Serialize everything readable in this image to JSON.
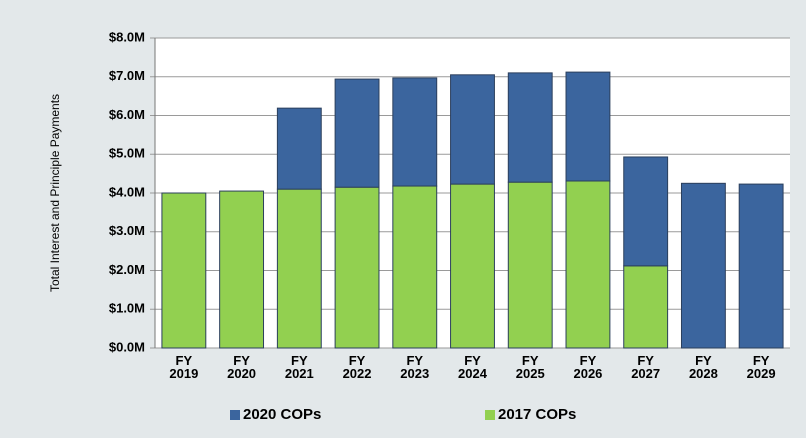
{
  "chart_data": {
    "type": "stacked_bar",
    "y_axis_label": "Total Interest and Principle Payments",
    "categories": [
      "FY 2019",
      "FY 2020",
      "FY 2021",
      "FY 2022",
      "FY 2023",
      "FY 2024",
      "FY 2025",
      "FY 2026",
      "FY 2027",
      "FY 2028",
      "FY 2029"
    ],
    "series": [
      {
        "name": "2017 COPs",
        "color": "#92d050",
        "values": [
          4.0,
          4.05,
          4.1,
          4.15,
          4.18,
          4.23,
          4.28,
          4.31,
          2.12,
          0,
          0
        ]
      },
      {
        "name": "2020 COPs",
        "color": "#3b659e",
        "values": [
          0,
          0,
          2.09,
          2.79,
          2.79,
          2.82,
          2.82,
          2.81,
          2.81,
          4.25,
          4.23
        ]
      }
    ],
    "legend_order": [
      1,
      0
    ],
    "ylim": [
      0,
      8
    ],
    "yticks": [
      {
        "value": 0,
        "label": "$0.0M"
      },
      {
        "value": 1,
        "label": "$1.0M"
      },
      {
        "value": 2,
        "label": "$2.0M"
      },
      {
        "value": 3,
        "label": "$3.0M"
      },
      {
        "value": 4,
        "label": "$4.0M"
      },
      {
        "value": 5,
        "label": "$5.0M"
      },
      {
        "value": 6,
        "label": "$6.0M"
      },
      {
        "value": 7,
        "label": "$7.0M"
      },
      {
        "value": 8,
        "label": "$8.0M"
      }
    ],
    "grid": true
  }
}
